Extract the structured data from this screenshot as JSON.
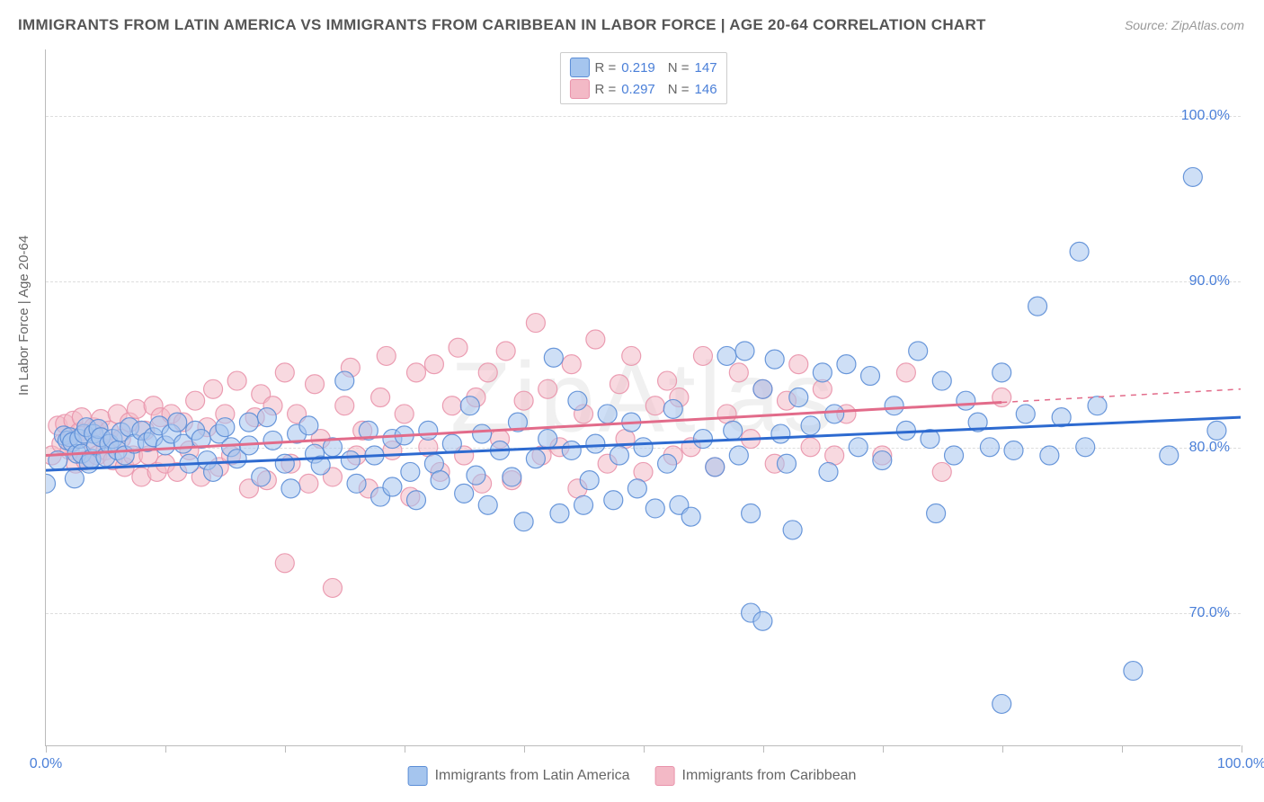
{
  "title": "IMMIGRANTS FROM LATIN AMERICA VS IMMIGRANTS FROM CARIBBEAN IN LABOR FORCE | AGE 20-64 CORRELATION CHART",
  "source": "Source: ZipAtlas.com",
  "watermark": "ZipAtlas",
  "ylabel": "In Labor Force | Age 20-64",
  "chart": {
    "type": "scatter",
    "xlim": [
      0,
      100
    ],
    "ylim": [
      62,
      104
    ],
    "background_color": "#ffffff",
    "grid_color": "#dddddd",
    "axis_color": "#bbbbbb",
    "yticks": [
      {
        "v": 70,
        "label": "70.0%"
      },
      {
        "v": 80,
        "label": "80.0%"
      },
      {
        "v": 90,
        "label": "90.0%"
      },
      {
        "v": 100,
        "label": "100.0%"
      }
    ],
    "xticks_lines": [
      0,
      10,
      20,
      30,
      40,
      50,
      60,
      70,
      80,
      90,
      100
    ],
    "xticks_labels": [
      {
        "v": 0,
        "label": "0.0%"
      },
      {
        "v": 100,
        "label": "100.0%"
      }
    ],
    "marker_radius": 10.5,
    "marker_opacity": 0.55,
    "line_width": 3,
    "series": [
      {
        "name": "Immigrants from Latin America",
        "color_fill": "#a5c5ee",
        "color_stroke": "#5b8dd6",
        "line_color": "#2d6ad0",
        "R": "0.219",
        "N": "147",
        "trend": {
          "x1": 0,
          "y1": 78.6,
          "x2": 100,
          "y2": 81.8,
          "solid_to_x": 100
        },
        "points": [
          [
            0,
            77.8
          ],
          [
            1,
            79.2
          ],
          [
            1.5,
            80.7
          ],
          [
            1.8,
            80.4
          ],
          [
            2,
            80.6
          ],
          [
            2.2,
            80.3
          ],
          [
            2.4,
            78.1
          ],
          [
            2.6,
            79.6
          ],
          [
            2.8,
            80.5
          ],
          [
            3,
            79.6
          ],
          [
            3.2,
            80.8
          ],
          [
            3.4,
            81.2
          ],
          [
            3.6,
            79.0
          ],
          [
            3.8,
            79.3
          ],
          [
            4,
            80.8
          ],
          [
            4.2,
            80.1
          ],
          [
            4.4,
            81.1
          ],
          [
            4.6,
            80.6
          ],
          [
            5,
            79.4
          ],
          [
            5.3,
            80.2
          ],
          [
            5.6,
            80.5
          ],
          [
            6,
            79.8
          ],
          [
            6.3,
            80.9
          ],
          [
            6.6,
            79.5
          ],
          [
            7,
            81.2
          ],
          [
            7.4,
            80.2
          ],
          [
            8,
            81.0
          ],
          [
            8.5,
            80.3
          ],
          [
            9,
            80.6
          ],
          [
            9.5,
            81.3
          ],
          [
            10,
            80.1
          ],
          [
            10.5,
            80.8
          ],
          [
            11,
            81.5
          ],
          [
            11.5,
            80.2
          ],
          [
            12,
            79.0
          ],
          [
            12.5,
            81.0
          ],
          [
            13,
            80.5
          ],
          [
            13.5,
            79.2
          ],
          [
            14,
            78.5
          ],
          [
            14.5,
            80.8
          ],
          [
            15,
            81.2
          ],
          [
            15.5,
            80.0
          ],
          [
            16,
            79.3
          ],
          [
            17,
            81.5
          ],
          [
            17,
            80.1
          ],
          [
            18,
            78.2
          ],
          [
            18.5,
            81.8
          ],
          [
            19,
            80.4
          ],
          [
            20,
            79.0
          ],
          [
            20.5,
            77.5
          ],
          [
            21,
            80.8
          ],
          [
            22,
            81.3
          ],
          [
            22.5,
            79.6
          ],
          [
            23,
            78.9
          ],
          [
            24,
            80.0
          ],
          [
            25,
            84.0
          ],
          [
            25.5,
            79.2
          ],
          [
            26,
            77.8
          ],
          [
            27,
            81.0
          ],
          [
            27.5,
            79.5
          ],
          [
            28,
            77.0
          ],
          [
            29,
            80.5
          ],
          [
            29,
            77.6
          ],
          [
            30,
            80.7
          ],
          [
            30.5,
            78.5
          ],
          [
            31,
            76.8
          ],
          [
            32,
            81.0
          ],
          [
            32.5,
            79.0
          ],
          [
            33,
            78.0
          ],
          [
            34,
            80.2
          ],
          [
            35,
            77.2
          ],
          [
            35.5,
            82.5
          ],
          [
            36,
            78.3
          ],
          [
            36.5,
            80.8
          ],
          [
            37,
            76.5
          ],
          [
            38,
            79.8
          ],
          [
            39,
            78.2
          ],
          [
            39.5,
            81.5
          ],
          [
            40,
            75.5
          ],
          [
            41,
            79.3
          ],
          [
            42,
            80.5
          ],
          [
            42.5,
            85.4
          ],
          [
            43,
            76.0
          ],
          [
            44,
            79.8
          ],
          [
            44.5,
            82.8
          ],
          [
            45,
            76.5
          ],
          [
            45.5,
            78.0
          ],
          [
            46,
            80.2
          ],
          [
            47,
            82.0
          ],
          [
            47.5,
            76.8
          ],
          [
            48,
            79.5
          ],
          [
            49,
            81.5
          ],
          [
            49.5,
            77.5
          ],
          [
            50,
            80.0
          ],
          [
            51,
            76.3
          ],
          [
            52,
            79.0
          ],
          [
            52.5,
            82.3
          ],
          [
            53,
            76.5
          ],
          [
            54,
            75.8
          ],
          [
            55,
            80.5
          ],
          [
            56,
            78.8
          ],
          [
            57,
            85.5
          ],
          [
            57.5,
            81.0
          ],
          [
            58,
            79.5
          ],
          [
            58.5,
            85.8
          ],
          [
            59,
            76.0
          ],
          [
            60,
            83.5
          ],
          [
            61,
            85.3
          ],
          [
            61.5,
            80.8
          ],
          [
            62,
            79.0
          ],
          [
            62.5,
            75.0
          ],
          [
            63,
            83.0
          ],
          [
            64,
            81.3
          ],
          [
            65,
            84.5
          ],
          [
            65.5,
            78.5
          ],
          [
            66,
            82.0
          ],
          [
            67,
            85.0
          ],
          [
            59,
            70.0
          ],
          [
            60,
            69.5
          ],
          [
            68,
            80.0
          ],
          [
            69,
            84.3
          ],
          [
            70,
            79.2
          ],
          [
            71,
            82.5
          ],
          [
            72,
            81.0
          ],
          [
            73,
            85.8
          ],
          [
            74,
            80.5
          ],
          [
            74.5,
            76.0
          ],
          [
            75,
            84.0
          ],
          [
            76,
            79.5
          ],
          [
            77,
            82.8
          ],
          [
            78,
            81.5
          ],
          [
            79,
            80.0
          ],
          [
            80,
            84.5
          ],
          [
            81,
            79.8
          ],
          [
            80,
            64.5
          ],
          [
            82,
            82.0
          ],
          [
            83,
            88.5
          ],
          [
            84,
            79.5
          ],
          [
            85,
            81.8
          ],
          [
            86.5,
            91.8
          ],
          [
            87,
            80.0
          ],
          [
            88,
            82.5
          ],
          [
            91,
            66.5
          ],
          [
            94,
            79.5
          ],
          [
            96,
            96.3
          ],
          [
            98,
            81.0
          ]
        ]
      },
      {
        "name": "Immigrants from Caribbean",
        "color_fill": "#f3b9c6",
        "color_stroke": "#e993ab",
        "line_color": "#e26b8a",
        "R": "0.297",
        "N": "146",
        "trend": {
          "x1": 0,
          "y1": 79.5,
          "x2": 100,
          "y2": 83.5,
          "solid_to_x": 80
        },
        "points": [
          [
            0.5,
            79.5
          ],
          [
            1,
            81.3
          ],
          [
            1.3,
            80.2
          ],
          [
            1.6,
            81.4
          ],
          [
            2,
            79.8
          ],
          [
            2.3,
            81.6
          ],
          [
            2.5,
            79.0
          ],
          [
            2.8,
            80.9
          ],
          [
            3,
            81.8
          ],
          [
            3.3,
            79.2
          ],
          [
            3.6,
            80.5
          ],
          [
            4,
            81.2
          ],
          [
            4.3,
            79.5
          ],
          [
            4.6,
            81.7
          ],
          [
            5,
            79.8
          ],
          [
            5.3,
            81.0
          ],
          [
            5.6,
            79.2
          ],
          [
            6,
            82.0
          ],
          [
            6.3,
            80.5
          ],
          [
            6.6,
            78.8
          ],
          [
            7,
            81.5
          ],
          [
            7.3,
            79.5
          ],
          [
            7.6,
            82.3
          ],
          [
            8,
            78.2
          ],
          [
            8.3,
            81.0
          ],
          [
            8.6,
            79.5
          ],
          [
            9,
            82.5
          ],
          [
            9.3,
            78.5
          ],
          [
            9.6,
            81.8
          ],
          [
            10,
            79.0
          ],
          [
            10.5,
            82.0
          ],
          [
            11,
            78.5
          ],
          [
            11.5,
            81.5
          ],
          [
            12,
            79.8
          ],
          [
            12.5,
            82.8
          ],
          [
            13,
            78.2
          ],
          [
            13.5,
            81.2
          ],
          [
            14,
            83.5
          ],
          [
            14.5,
            78.8
          ],
          [
            15,
            82.0
          ],
          [
            15.5,
            79.5
          ],
          [
            16,
            84.0
          ],
          [
            17,
            77.5
          ],
          [
            17.5,
            81.8
          ],
          [
            18,
            83.2
          ],
          [
            18.5,
            78.0
          ],
          [
            19,
            82.5
          ],
          [
            20,
            84.5
          ],
          [
            20.5,
            79.0
          ],
          [
            21,
            82.0
          ],
          [
            20,
            73.0
          ],
          [
            22,
            77.8
          ],
          [
            22.5,
            83.8
          ],
          [
            23,
            80.5
          ],
          [
            24,
            78.2
          ],
          [
            24,
            71.5
          ],
          [
            25,
            82.5
          ],
          [
            25.5,
            84.8
          ],
          [
            26,
            79.5
          ],
          [
            26.5,
            81.0
          ],
          [
            27,
            77.5
          ],
          [
            28,
            83.0
          ],
          [
            28.5,
            85.5
          ],
          [
            29,
            79.8
          ],
          [
            30,
            82.0
          ],
          [
            30.5,
            77.0
          ],
          [
            31,
            84.5
          ],
          [
            32,
            80.0
          ],
          [
            32.5,
            85.0
          ],
          [
            33,
            78.5
          ],
          [
            34,
            82.5
          ],
          [
            34.5,
            86.0
          ],
          [
            35,
            79.5
          ],
          [
            36,
            83.0
          ],
          [
            36.5,
            77.8
          ],
          [
            37,
            84.5
          ],
          [
            38,
            80.5
          ],
          [
            38.5,
            85.8
          ],
          [
            39,
            78.0
          ],
          [
            40,
            82.8
          ],
          [
            41,
            87.5
          ],
          [
            41.5,
            79.5
          ],
          [
            42,
            83.5
          ],
          [
            43,
            80.0
          ],
          [
            44,
            85.0
          ],
          [
            44.5,
            77.5
          ],
          [
            45,
            82.0
          ],
          [
            46,
            86.5
          ],
          [
            47,
            79.0
          ],
          [
            48,
            83.8
          ],
          [
            48.5,
            80.5
          ],
          [
            49,
            85.5
          ],
          [
            50,
            78.5
          ],
          [
            51,
            82.5
          ],
          [
            52,
            84.0
          ],
          [
            52.5,
            79.5
          ],
          [
            53,
            83.0
          ],
          [
            54,
            80.0
          ],
          [
            55,
            85.5
          ],
          [
            56,
            78.8
          ],
          [
            57,
            82.0
          ],
          [
            58,
            84.5
          ],
          [
            59,
            80.5
          ],
          [
            60,
            83.5
          ],
          [
            61,
            79.0
          ],
          [
            62,
            82.8
          ],
          [
            63,
            85.0
          ],
          [
            64,
            80.0
          ],
          [
            65,
            83.5
          ],
          [
            66,
            79.5
          ],
          [
            67,
            82.0
          ],
          [
            70,
            79.5
          ],
          [
            72,
            84.5
          ],
          [
            75,
            78.5
          ],
          [
            80,
            83.0
          ]
        ]
      }
    ]
  },
  "legend_top": {
    "R_label": "R  =",
    "N_label": "N  ="
  },
  "legend_bottom": {
    "item1": "Immigrants from Latin America",
    "item2": "Immigrants from Caribbean"
  }
}
